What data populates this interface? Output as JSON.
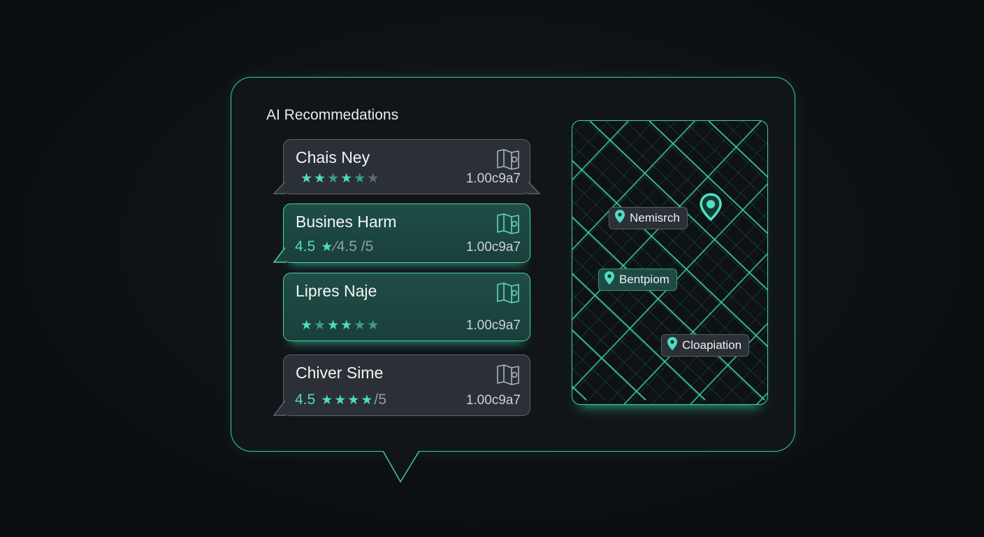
{
  "header": {
    "title": "AI Recommedations"
  },
  "colors": {
    "accent": "#3fc9a6",
    "card_gray": "#2b3036",
    "card_teal": "#1f4d46",
    "background": "#0c0f12"
  },
  "cards": [
    {
      "name": "Chais Ney",
      "style": "gray",
      "rating_prefix": "",
      "stars": [
        "full",
        "full",
        "half",
        "full",
        "half",
        "off"
      ],
      "rating_suffix": "",
      "code": "1.00c9a7",
      "icon": "folded-map-icon"
    },
    {
      "name": "Busines Harm",
      "style": "teal",
      "rating_prefix": "4.5",
      "stars": [
        "full"
      ],
      "rating_suffix": "⁄4.5 /5",
      "code": "1.00c9a7",
      "icon": "folded-map-icon"
    },
    {
      "name": "Lipres Naje",
      "style": "teal",
      "rating_prefix": "",
      "stars": [
        "full",
        "half",
        "full",
        "full",
        "half",
        "half"
      ],
      "rating_suffix": "",
      "code": "1.00c9a7",
      "icon": "folded-map-icon"
    },
    {
      "name": "Chiver Sime",
      "style": "gray",
      "rating_prefix": "4.5",
      "stars": [
        "full",
        "full",
        "full",
        "full"
      ],
      "rating_suffix": "/5",
      "code": "1.00c9a7",
      "icon": "folded-map-icon"
    }
  ],
  "map": {
    "labels": [
      {
        "text": "Nemisrch",
        "style": "gray"
      },
      {
        "text": "Bentpiom",
        "style": "teal"
      },
      {
        "text": "Cloapiation",
        "style": "gray"
      }
    ],
    "selected_pin": "location-pin-icon"
  }
}
